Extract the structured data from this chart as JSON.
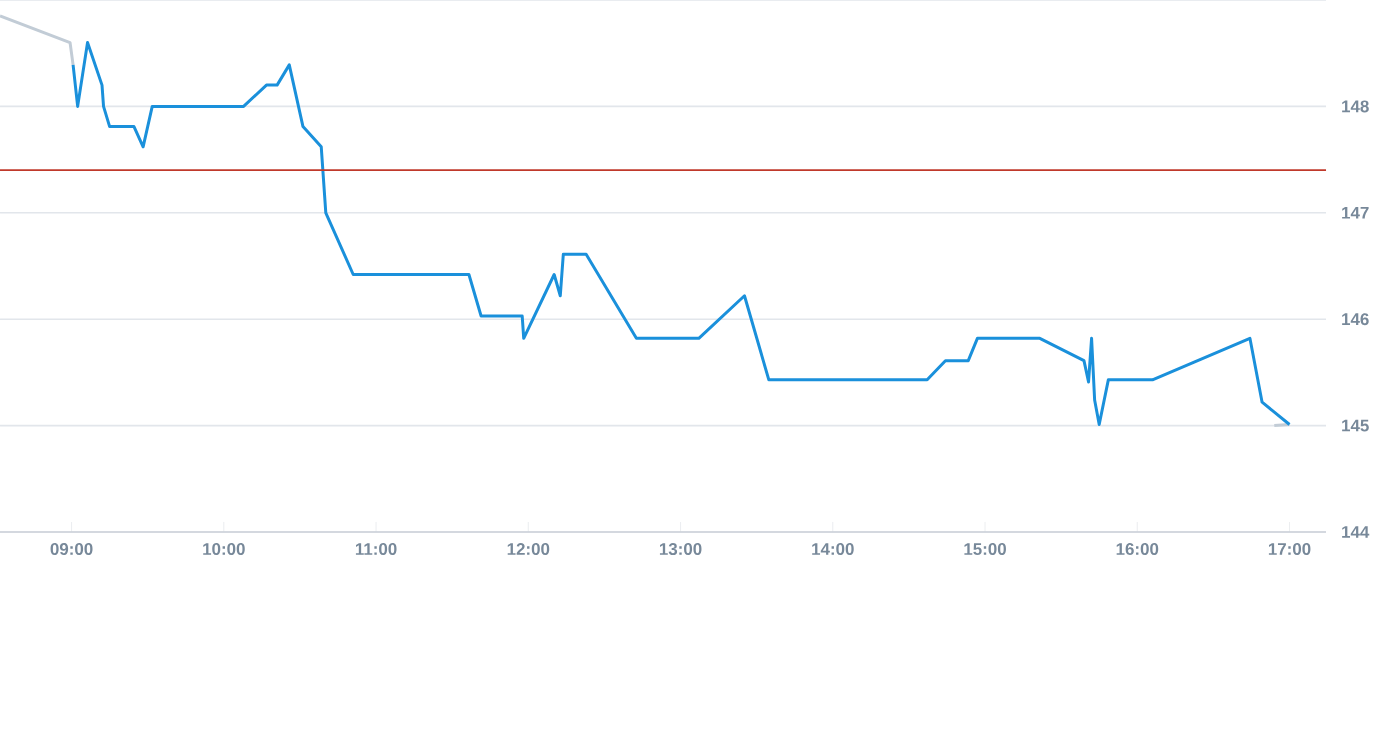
{
  "chart_data": {
    "type": "line",
    "xlim": [
      8.53,
      17.24
    ],
    "ylim": [
      144,
      149
    ],
    "xticks": [
      {
        "value": 9,
        "label": "09:00"
      },
      {
        "value": 10,
        "label": "10:00"
      },
      {
        "value": 11,
        "label": "11:00"
      },
      {
        "value": 12,
        "label": "12:00"
      },
      {
        "value": 13,
        "label": "13:00"
      },
      {
        "value": 14,
        "label": "14:00"
      },
      {
        "value": 15,
        "label": "15:00"
      },
      {
        "value": 16,
        "label": "16:00"
      },
      {
        "value": 17,
        "label": "17:00"
      }
    ],
    "yticks": [
      144,
      145,
      146,
      147,
      148,
      {
        "value": 149,
        "label": null
      }
    ],
    "grid": "y",
    "marker": "none",
    "line_style": "solid",
    "ref_lines": [
      {
        "axis": "y",
        "value": 147.4,
        "color": "#c0392b"
      }
    ],
    "series": [
      {
        "color": "#c2ccd6",
        "x": [
          8.53,
          8.99,
          9.01
        ],
        "values": [
          148.85,
          148.6,
          148.39
        ]
      },
      {
        "color": "#c2ccd6",
        "x": [
          16.9,
          17.0
        ],
        "values": [
          145.0,
          145.01
        ]
      },
      {
        "color": "#1a90db",
        "x": [
          9.01,
          9.04,
          9.105,
          9.2,
          9.21,
          9.25,
          9.41,
          9.47,
          9.53,
          10.13,
          10.28,
          10.35,
          10.43,
          10.52,
          10.64,
          10.67,
          10.85,
          11.61,
          11.69,
          11.96,
          11.97,
          12.17,
          12.21,
          12.23,
          12.38,
          12.71,
          13.12,
          13.42,
          13.58,
          14.62,
          14.74,
          14.89,
          14.95,
          15.36,
          15.65,
          15.68,
          15.7,
          15.72,
          15.75,
          15.81,
          16.1,
          16.74,
          16.82,
          17.0
        ],
        "values": [
          148.39,
          148.0,
          148.6,
          148.2,
          148.0,
          147.81,
          147.81,
          147.62,
          148.0,
          148.0,
          148.2,
          148.2,
          148.39,
          147.81,
          147.62,
          147.0,
          146.42,
          146.42,
          146.03,
          146.03,
          145.82,
          146.42,
          146.22,
          146.61,
          146.61,
          145.82,
          145.82,
          146.22,
          145.43,
          145.43,
          145.61,
          145.61,
          145.82,
          145.82,
          145.61,
          145.41,
          145.82,
          145.24,
          145.01,
          145.43,
          145.43,
          145.82,
          145.22,
          145.01
        ]
      }
    ]
  }
}
